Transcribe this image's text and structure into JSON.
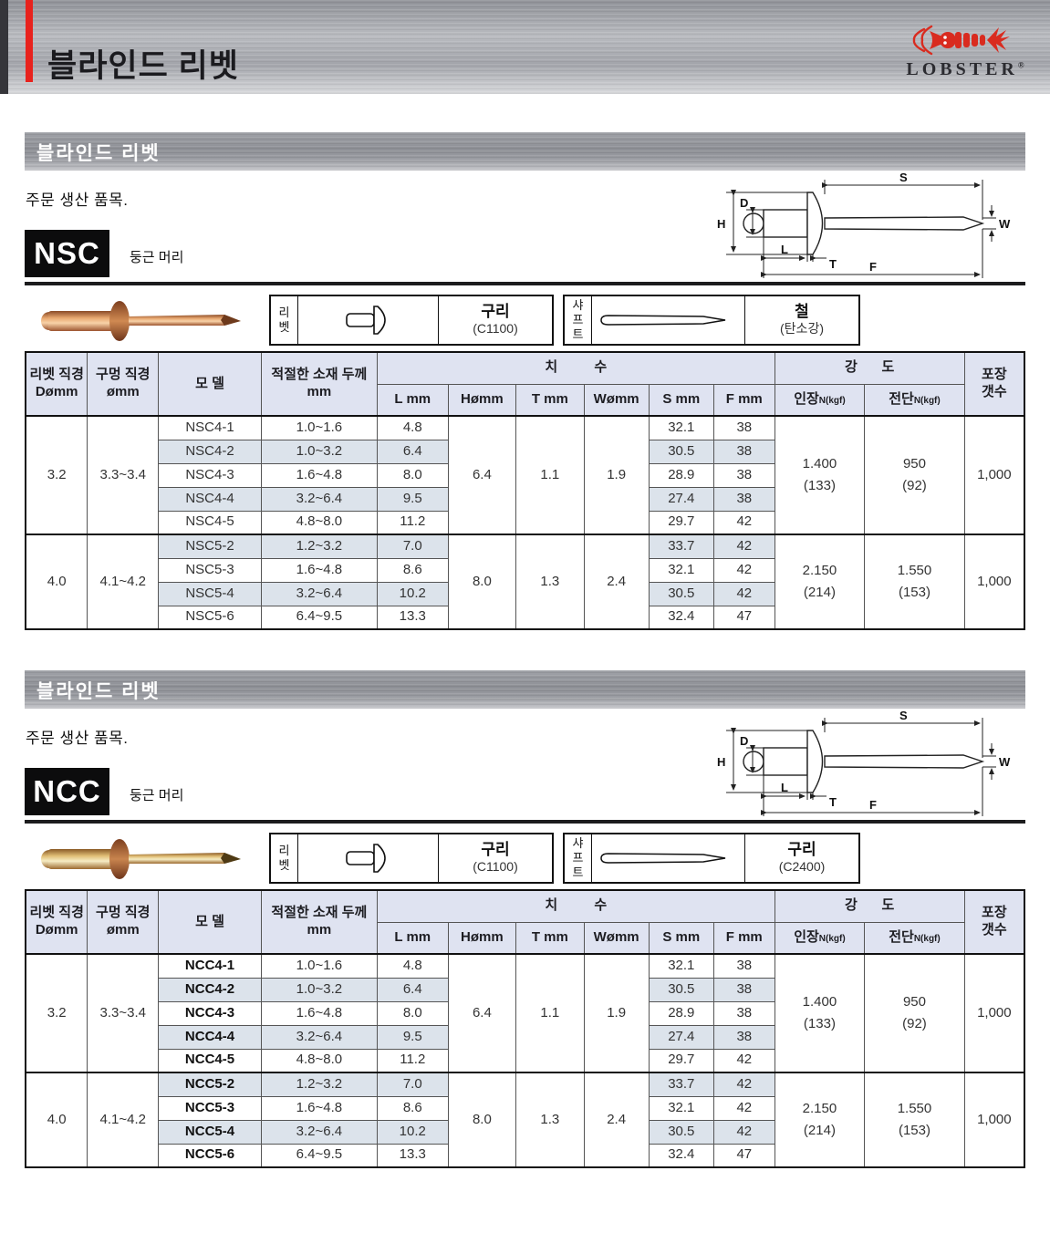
{
  "page": {
    "title": "블라인드 리벳",
    "logo": {
      "brand": "LOBSTER",
      "reg": "®",
      "accent_red": "#d92b1f"
    }
  },
  "diagram_labels": {
    "h": "H",
    "d": "D",
    "l": "L",
    "t": "T",
    "s": "S",
    "w": "W",
    "f": "F"
  },
  "table_header": {
    "col_rivet_dia": "리벳 직경\nDømm",
    "col_hole_dia": "구멍 직경\nømm",
    "col_model": "모 델",
    "col_thickness": "적절한 소재 두께\nmm",
    "group_dims": "치 수",
    "dim_l": "L mm",
    "dim_h": "Hømm",
    "dim_t": "T mm",
    "dim_w": "Wømm",
    "dim_s": "S mm",
    "dim_f": "F mm",
    "group_strength": "강 도",
    "col_tensile": "인장",
    "col_tensile_sub": "N(kgf)",
    "col_shear": "전단",
    "col_shear_sub": "N(kgf)",
    "col_pack": "포장\n갯수"
  },
  "sections": [
    {
      "bar_title": "블라인드 리벳",
      "note": "주문 생산 품목.",
      "model_code": "NSC",
      "head_type": "둥근 머리",
      "photo_color": "#c9875a",
      "materials": {
        "rivet": {
          "part": "리\n벳",
          "material": "구리",
          "spec": "(C1100)"
        },
        "shaft": {
          "part": "샤\n프\n트",
          "material": "철",
          "spec": "(탄소강)"
        }
      },
      "groups": [
        {
          "rivet_dia": "3.2",
          "hole_dia": "3.3~3.4",
          "h_dia": "6.4",
          "t": "1.1",
          "w": "1.9",
          "tensile": "1.400\n(133)",
          "shear": "950\n(92)",
          "pack": "1,000",
          "rows": [
            {
              "model": "NSC4-1",
              "thickness": "1.0~1.6",
              "l": "4.8",
              "s": "32.1",
              "f": "38",
              "shaded": false
            },
            {
              "model": "NSC4-2",
              "thickness": "1.0~3.2",
              "l": "6.4",
              "s": "30.5",
              "f": "38",
              "shaded": true
            },
            {
              "model": "NSC4-3",
              "thickness": "1.6~4.8",
              "l": "8.0",
              "s": "28.9",
              "f": "38",
              "shaded": false
            },
            {
              "model": "NSC4-4",
              "thickness": "3.2~6.4",
              "l": "9.5",
              "s": "27.4",
              "f": "38",
              "shaded": true
            },
            {
              "model": "NSC4-5",
              "thickness": "4.8~8.0",
              "l": "11.2",
              "s": "29.7",
              "f": "42",
              "shaded": false
            }
          ]
        },
        {
          "rivet_dia": "4.0",
          "hole_dia": "4.1~4.2",
          "h_dia": "8.0",
          "t": "1.3",
          "w": "2.4",
          "tensile": "2.150\n(214)",
          "shear": "1.550\n(153)",
          "pack": "1,000",
          "rows": [
            {
              "model": "NSC5-2",
              "thickness": "1.2~3.2",
              "l": "7.0",
              "s": "33.7",
              "f": "42",
              "shaded": true
            },
            {
              "model": "NSC5-3",
              "thickness": "1.6~4.8",
              "l": "8.6",
              "s": "32.1",
              "f": "42",
              "shaded": false
            },
            {
              "model": "NSC5-4",
              "thickness": "3.2~6.4",
              "l": "10.2",
              "s": "30.5",
              "f": "42",
              "shaded": true
            },
            {
              "model": "NSC5-6",
              "thickness": "6.4~9.5",
              "l": "13.3",
              "s": "32.4",
              "f": "47",
              "shaded": false
            }
          ]
        }
      ]
    },
    {
      "bar_title": "블라인드 리벳",
      "note": "주문 생산 품목.",
      "model_code": "NCC",
      "head_type": "둥근 머리",
      "photo_color": "#c7a54a",
      "materials": {
        "rivet": {
          "part": "리\n벳",
          "material": "구리",
          "spec": "(C1100)"
        },
        "shaft": {
          "part": "샤\n프\n트",
          "material": "구리",
          "spec": "(C2400)"
        }
      },
      "groups": [
        {
          "rivet_dia": "3.2",
          "hole_dia": "3.3~3.4",
          "h_dia": "6.4",
          "t": "1.1",
          "w": "1.9",
          "tensile": "1.400\n(133)",
          "shear": "950\n(92)",
          "pack": "1,000",
          "rows": [
            {
              "model": "NCC4-1",
              "thickness": "1.0~1.6",
              "l": "4.8",
              "s": "32.1",
              "f": "38",
              "shaded": false
            },
            {
              "model": "NCC4-2",
              "thickness": "1.0~3.2",
              "l": "6.4",
              "s": "30.5",
              "f": "38",
              "shaded": true
            },
            {
              "model": "NCC4-3",
              "thickness": "1.6~4.8",
              "l": "8.0",
              "s": "28.9",
              "f": "38",
              "shaded": false
            },
            {
              "model": "NCC4-4",
              "thickness": "3.2~6.4",
              "l": "9.5",
              "s": "27.4",
              "f": "38",
              "shaded": true
            },
            {
              "model": "NCC4-5",
              "thickness": "4.8~8.0",
              "l": "11.2",
              "s": "29.7",
              "f": "42",
              "shaded": false
            }
          ]
        },
        {
          "rivet_dia": "4.0",
          "hole_dia": "4.1~4.2",
          "h_dia": "8.0",
          "t": "1.3",
          "w": "2.4",
          "tensile": "2.150\n(214)",
          "shear": "1.550\n(153)",
          "pack": "1,000",
          "rows": [
            {
              "model": "NCC5-2",
              "thickness": "1.2~3.2",
              "l": "7.0",
              "s": "33.7",
              "f": "42",
              "shaded": true
            },
            {
              "model": "NCC5-3",
              "thickness": "1.6~4.8",
              "l": "8.6",
              "s": "32.1",
              "f": "42",
              "shaded": false
            },
            {
              "model": "NCC5-4",
              "thickness": "3.2~6.4",
              "l": "10.2",
              "s": "30.5",
              "f": "42",
              "shaded": true
            },
            {
              "model": "NCC5-6",
              "thickness": "6.4~9.5",
              "l": "13.3",
              "s": "32.4",
              "f": "47",
              "shaded": false
            }
          ]
        }
      ]
    }
  ]
}
